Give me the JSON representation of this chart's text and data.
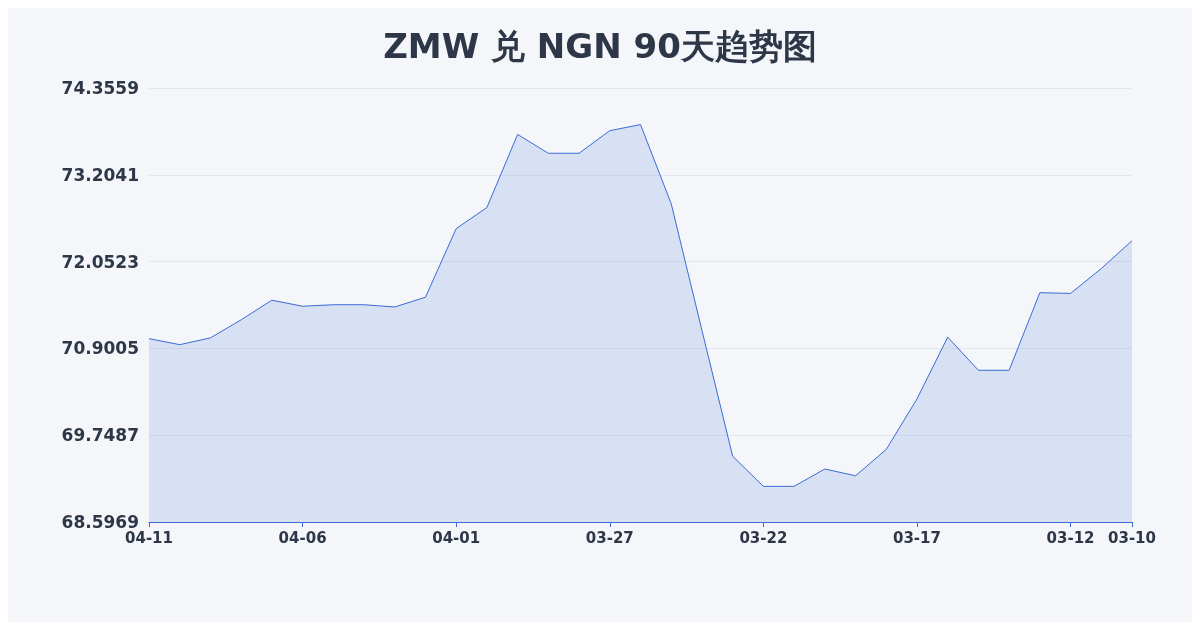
{
  "chart_data": {
    "type": "area",
    "title": "ZMW 兑 NGN 90天趋势图",
    "categories": [
      "04-11",
      null,
      null,
      null,
      null,
      "04-06",
      null,
      null,
      null,
      null,
      "04-01",
      null,
      null,
      null,
      null,
      "03-27",
      null,
      null,
      null,
      null,
      "03-22",
      null,
      null,
      null,
      null,
      "03-17",
      null,
      null,
      null,
      null,
      "03-12",
      null,
      "03-10"
    ],
    "series": [
      {
        "color": "#3a6bd6",
        "values": [
          71.03,
          70.95,
          71.04,
          71.28,
          71.54,
          71.46,
          71.48,
          71.48,
          71.45,
          71.58,
          72.49,
          72.77,
          73.74,
          73.49,
          73.49,
          73.79,
          73.87,
          72.82,
          71.14,
          69.47,
          69.07,
          69.07,
          69.3,
          69.21,
          69.56,
          70.23,
          71.05,
          70.61,
          70.61,
          71.64,
          71.63,
          71.96,
          72.33
        ]
      }
    ],
    "ylim": [
      68.5969,
      74.3559
    ],
    "yticks": [
      68.5969,
      69.7487,
      70.9005,
      72.0523,
      73.2041,
      74.3559
    ],
    "grid": "y",
    "marker": "none",
    "line_style": "solid"
  }
}
